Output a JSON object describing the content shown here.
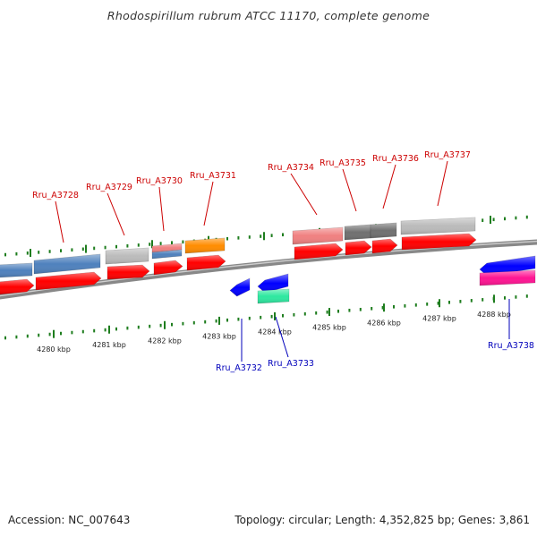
{
  "title": "Rhodospirillum rubrum ATCC 11170, complete genome",
  "footer": {
    "accession": "Accession: NC_007643",
    "topology": "Topology: circular; Length: 4,352,825 bp; Genes: 3,861"
  },
  "colors": {
    "forward_label": "#cc0000",
    "reverse_label": "#0000bb",
    "cds_forward": "#ff0000",
    "cds_reverse": "#0000ff",
    "backbone": "#888888",
    "tick": "#1e7d1e",
    "gene_steelblue": "#4f81bd",
    "gene_gray": "#bbbbbb",
    "gene_pink": "#f08080",
    "gene_orange": "#ff8c00",
    "gene_darkgray": "#707070",
    "gene_teal": "#2ee8a0",
    "gene_magenta": "#ff1493"
  },
  "ticks": [
    "4280 kbp",
    "4281 kbp",
    "4282 kbp",
    "4283 kbp",
    "4284 kbp",
    "4285 kbp",
    "4286 kbp",
    "4287 kbp",
    "4288 kbp"
  ],
  "forward_labels": [
    "Rru_A3728",
    "Rru_A3729",
    "Rru_A3730",
    "Rru_A3731",
    "Rru_A3734",
    "Rru_A3735",
    "Rru_A3736",
    "Rru_A3737"
  ],
  "reverse_labels": [
    "Rru_A3732",
    "Rru_A3733",
    "Rru_A3738"
  ]
}
